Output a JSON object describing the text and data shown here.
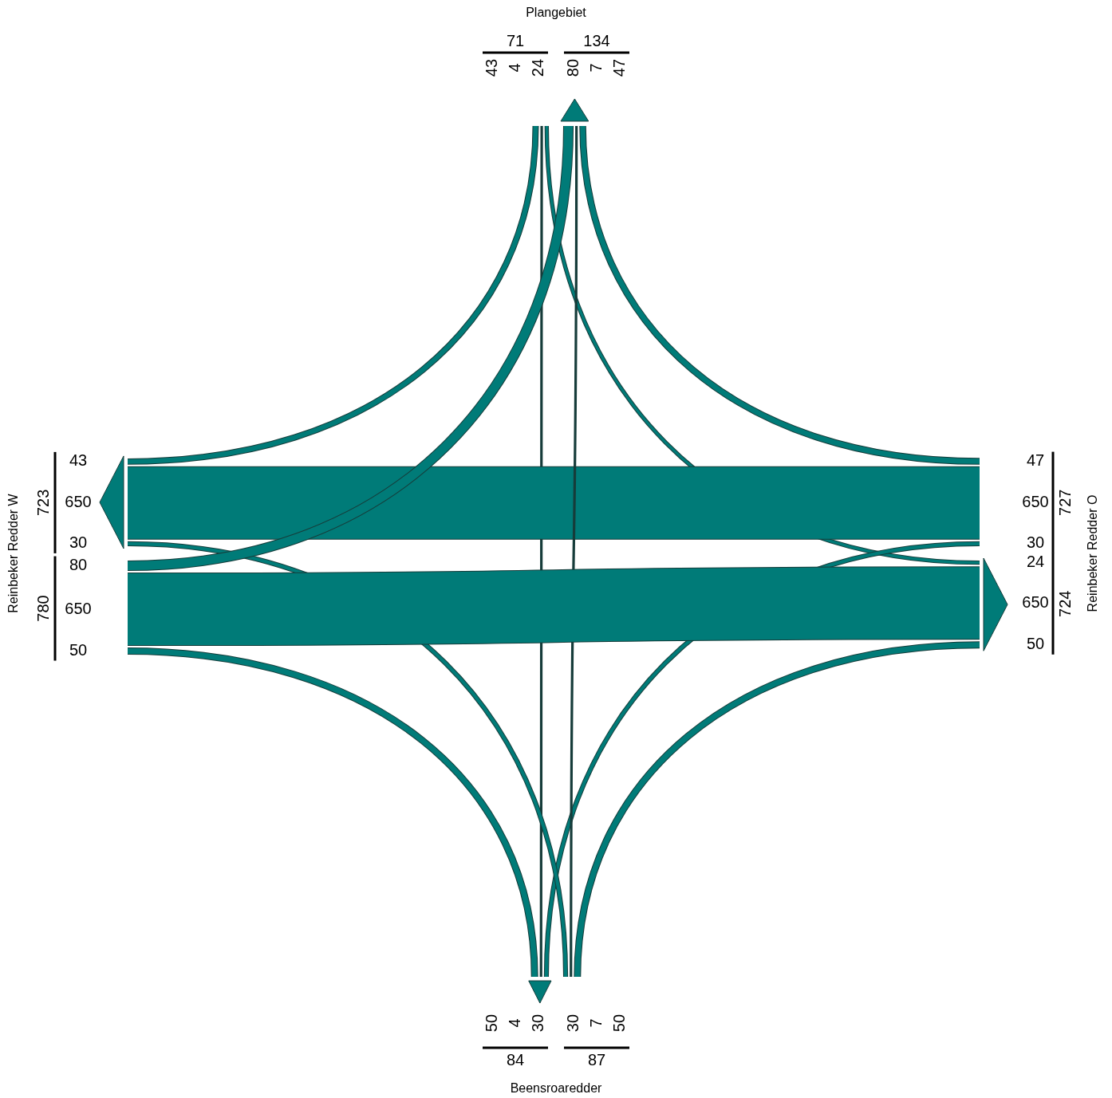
{
  "chart_data": {
    "type": "other",
    "categories": [
      "Plangebiet",
      "Reinbeker Redder O",
      "Beensroaredder",
      "Reinbeker Redder W"
    ],
    "series": [
      {
        "color": "#007b78",
        "values": [
          null,
          24,
          4,
          43
        ],
        "value_labels": [
          null,
          "24",
          "4",
          "43"
        ]
      },
      {
        "color": "#007b78",
        "values": [
          47,
          null,
          30,
          650
        ],
        "value_labels": [
          "47",
          null,
          "30",
          "650"
        ]
      },
      {
        "color": "#007b78",
        "values": [
          7,
          50,
          null,
          30
        ],
        "value_labels": [
          "7",
          "50",
          null,
          "30"
        ]
      },
      {
        "color": "#007b78",
        "values": [
          80,
          650,
          50,
          null
        ],
        "value_labels": [
          "80",
          "650",
          "50",
          null
        ]
      }
    ],
    "totals": [
      "71",
      "134",
      "727",
      "724",
      "87",
      "84",
      "780",
      "723"
    ]
  }
}
